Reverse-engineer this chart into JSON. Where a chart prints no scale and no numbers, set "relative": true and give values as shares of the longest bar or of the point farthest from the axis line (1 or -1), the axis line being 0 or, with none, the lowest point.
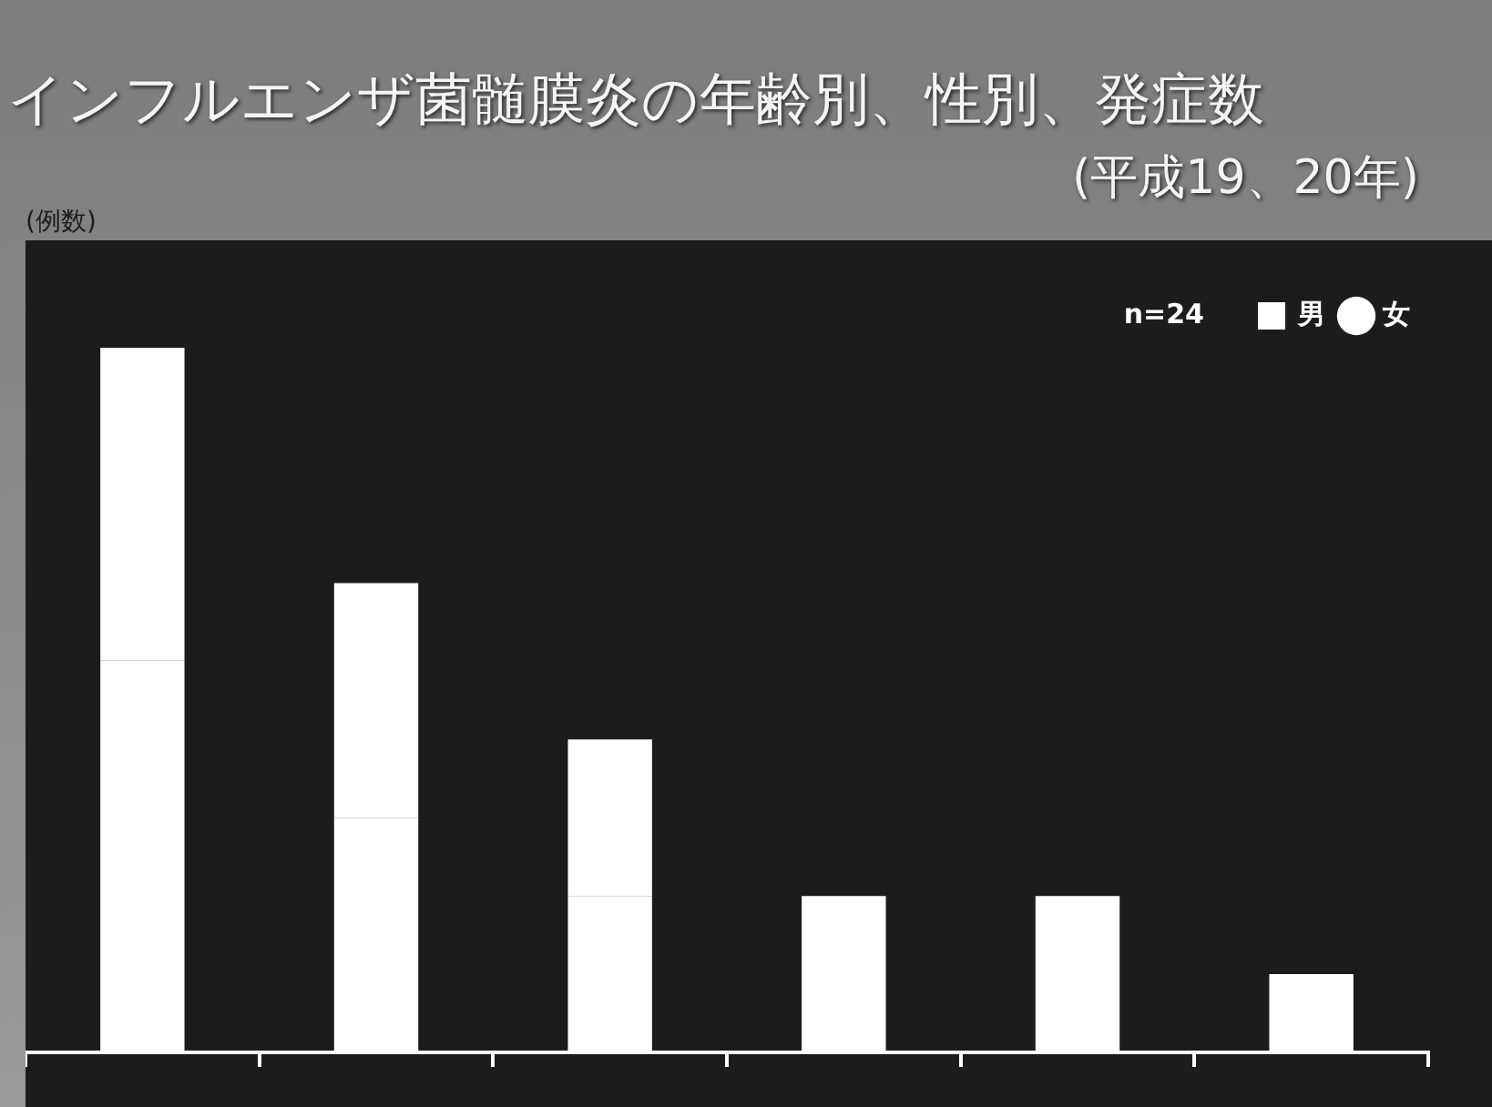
{
  "chart_data": {
    "type": "bar",
    "title": "インフルエンザ菌髄膜炎の年齢別、性別、発症数",
    "subtitle": "(平成19、20年)",
    "ylabel": "(例数)",
    "annotations": [
      "n=24"
    ],
    "categories": [
      null,
      null,
      null,
      null,
      null,
      null
    ],
    "series": [
      {
        "name": "男",
        "color": "#ffffff",
        "marker": "square",
        "values": [
          0.556,
          0.333,
          0.222,
          0.111,
          0.222,
          0
        ]
      },
      {
        "name": "女",
        "color": "#ffffff",
        "marker": "circle",
        "values": [
          0.444,
          0.333,
          0.222,
          0.111,
          0,
          0.111
        ]
      }
    ],
    "stacked": true,
    "relative": true,
    "tick_labels": false,
    "legend": "top right"
  }
}
